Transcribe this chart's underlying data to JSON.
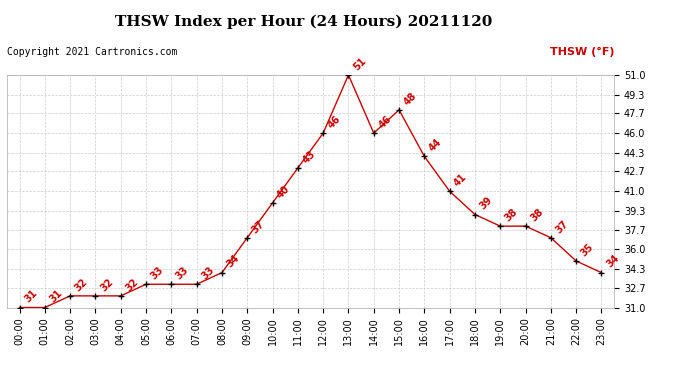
{
  "title": "THSW Index per Hour (24 Hours) 20211120",
  "copyright": "Copyright 2021 Cartronics.com",
  "legend_label": "THSW (°F)",
  "hours": [
    0,
    1,
    2,
    3,
    4,
    5,
    6,
    7,
    8,
    9,
    10,
    11,
    12,
    13,
    14,
    15,
    16,
    17,
    18,
    19,
    20,
    21,
    22,
    23
  ],
  "values": [
    31,
    31,
    32,
    32,
    32,
    33,
    33,
    33,
    34,
    37,
    40,
    43,
    46,
    51,
    46,
    48,
    44,
    41,
    39,
    38,
    38,
    37,
    35,
    34
  ],
  "xlabels": [
    "00:00",
    "01:00",
    "02:00",
    "03:00",
    "04:00",
    "05:00",
    "06:00",
    "07:00",
    "08:00",
    "09:00",
    "10:00",
    "11:00",
    "12:00",
    "13:00",
    "14:00",
    "15:00",
    "16:00",
    "17:00",
    "18:00",
    "19:00",
    "20:00",
    "21:00",
    "22:00",
    "23:00"
  ],
  "yticks": [
    31.0,
    32.7,
    34.3,
    36.0,
    37.7,
    39.3,
    41.0,
    42.7,
    44.3,
    46.0,
    47.7,
    49.3,
    51.0
  ],
  "ylim": [
    31.0,
    51.0
  ],
  "line_color": "#cc0000",
  "marker_color": "#000000",
  "label_color": "#cc0000",
  "title_color": "#000000",
  "copyright_color": "#000000",
  "legend_color": "#cc0000",
  "bg_color": "#ffffff",
  "grid_color": "#cccccc",
  "title_fontsize": 11,
  "axis_fontsize": 7,
  "label_fontsize": 7,
  "copyright_fontsize": 7,
  "legend_fontsize": 8
}
